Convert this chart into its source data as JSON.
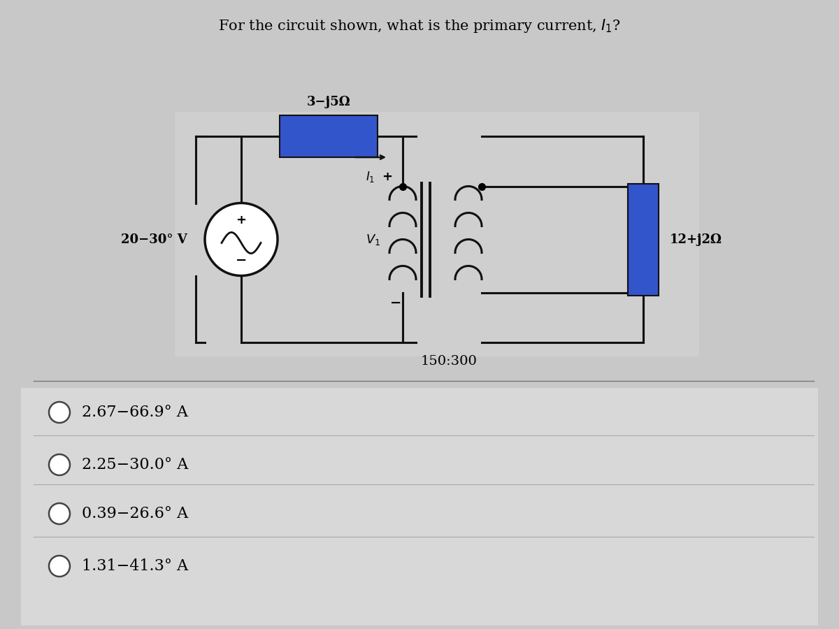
{
  "title": "For the circuit shown, what is the primary current, $I_1$?",
  "title_fontsize": 15,
  "background_color": "#c8c8c8",
  "impedance_label": "3−j5Ω",
  "source_label": "20−30° V",
  "v1_label": "$V_1$",
  "load_label": "12+j2Ω",
  "turns_label": "150:300",
  "choices": [
    "2.67−66.9° A",
    "2.25−30.0° A",
    "0.39−26.6° A",
    "1.31−41.3° A"
  ],
  "choice_fontsize": 16,
  "imp_box_color": "#3355cc",
  "load_box_color": "#3355cc",
  "wire_color": "#111111",
  "bg_white": "#e8e8e8"
}
